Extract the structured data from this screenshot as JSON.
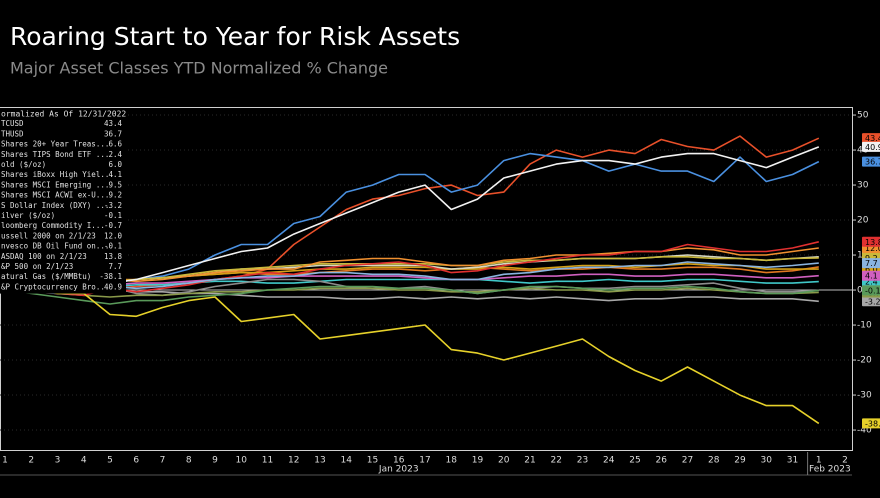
{
  "chart_data": {
    "type": "line",
    "title": "Roaring Start to Year for Risk Assets",
    "subtitle": "Major Asset Classes YTD Normalized % Change",
    "legend_title": "ormalized As Of 12/31/2022",
    "categories": [
      "1",
      "2",
      "3",
      "4",
      "5",
      "6",
      "7",
      "8",
      "9",
      "10",
      "11",
      "12",
      "13",
      "14",
      "15",
      "16",
      "17",
      "18",
      "19",
      "20",
      "21",
      "22",
      "23",
      "24",
      "25",
      "26",
      "27",
      "28",
      "29",
      "30",
      "31",
      "1",
      "2"
    ],
    "month_labels": [
      "Jan 2023",
      "Feb 2023"
    ],
    "ylim": [
      -45.7,
      52.3
    ],
    "yticks": [
      -40,
      -30,
      -20,
      -10,
      0,
      10,
      20,
      30,
      40,
      50
    ],
    "grid": true,
    "series": [
      {
        "name": "TCUSD",
        "value_label": "43.4",
        "color": "#e8502a",
        "values": [
          0,
          0.5,
          0.3,
          1,
          0.5,
          1,
          1.5,
          2,
          3,
          4,
          6,
          13,
          18,
          23,
          26,
          27,
          29,
          30,
          27,
          28,
          36,
          40,
          38,
          40,
          39,
          43,
          41,
          40,
          44,
          38,
          40,
          43.4,
          null
        ]
      },
      {
        "name": "THUSD",
        "value_label": "36.7",
        "color": "#4a90e0",
        "values": [
          0,
          0.5,
          1,
          1.5,
          2,
          3,
          4,
          6,
          10,
          13,
          13,
          19,
          21,
          28,
          30,
          33,
          33,
          28,
          30,
          37,
          39,
          38,
          37,
          34,
          36,
          34,
          34,
          31,
          38,
          31,
          33,
          36.7,
          null
        ]
      },
      {
        "name": "Shares 20+ Year Treas...",
        "value_label": "6.6",
        "color": "#e07820",
        "values": [
          0,
          0.5,
          1.5,
          2,
          3,
          3,
          3.5,
          4,
          4.5,
          5,
          4.5,
          4.5,
          5,
          5.5,
          6,
          6,
          5.5,
          6,
          6.5,
          6,
          5.5,
          6,
          6,
          6.5,
          6,
          6,
          6.5,
          6.5,
          6,
          5,
          5.5,
          6.6,
          null
        ]
      },
      {
        "name": "Shares TIPS Bond ETF ...",
        "value_label": "2.4",
        "color": "#40c8c8",
        "values": [
          0,
          0,
          0.5,
          0.5,
          1,
          1.5,
          1.5,
          2,
          2.5,
          2.5,
          2,
          2,
          2.5,
          3,
          3,
          3,
          3,
          3,
          3,
          2.5,
          2,
          2.5,
          2.5,
          3,
          2.5,
          2.5,
          3,
          3,
          2.5,
          2,
          2,
          2.4,
          null
        ]
      },
      {
        "name": "old ($/oz)",
        "value_label": "6.0",
        "color": "#d4a017",
        "values": [
          0,
          0.5,
          1,
          1.5,
          2.5,
          3,
          3.5,
          4,
          4.5,
          5,
          5,
          5.5,
          6,
          6,
          6.5,
          6.5,
          6.5,
          6,
          6,
          6.5,
          6,
          6.5,
          7,
          7,
          6.5,
          7,
          7.5,
          7,
          7,
          6,
          6,
          6,
          null
        ]
      },
      {
        "name": "Shares iBoxx High Yiel...",
        "value_label": "4.1",
        "color": "#d060c0",
        "values": [
          0,
          -0.5,
          0,
          0.5,
          1.5,
          2,
          2,
          2.5,
          3,
          3.5,
          3.5,
          4,
          4,
          4,
          4,
          4,
          3.5,
          3,
          3,
          3.5,
          4,
          4,
          4.5,
          4.5,
          4,
          4,
          4.5,
          4.5,
          4,
          3.5,
          3.5,
          4.1,
          null
        ]
      },
      {
        "name": "Shares MSCI Emerging ...",
        "value_label": "9.5",
        "color": "#d8d8c0",
        "values": [
          0,
          0.5,
          1,
          1,
          2,
          3,
          3.5,
          4,
          5,
          6,
          6,
          6.5,
          7,
          7,
          7,
          7,
          7,
          6,
          6.5,
          7.5,
          8,
          8.5,
          9,
          9,
          9,
          9.5,
          10,
          9.5,
          9,
          8.5,
          9,
          9.5,
          null
        ]
      },
      {
        "name": "Shares MSCI ACWI ex-U...",
        "value_label": "9.2",
        "color": "#c9b83a",
        "values": [
          0,
          0.5,
          1,
          1.5,
          2.5,
          3,
          3.5,
          4.5,
          5.5,
          6,
          6.5,
          7,
          7.5,
          7.5,
          7.5,
          7.5,
          7.5,
          7,
          7,
          8,
          8.5,
          8.5,
          9,
          9,
          9,
          9.5,
          9.5,
          9,
          9,
          8.5,
          9,
          9.2,
          null
        ]
      },
      {
        "name": "S Dollar Index (DXY) ...",
        "value_label": "-3.2",
        "color": "#a8a8a8",
        "values": [
          0,
          0.5,
          0.5,
          1,
          0,
          -0.5,
          -0.5,
          -1,
          -1,
          -1.5,
          -2,
          -2,
          -2,
          -2.5,
          -2.5,
          -2,
          -2.5,
          -2,
          -2.5,
          -2,
          -2.5,
          -2,
          -2.5,
          -3,
          -2.5,
          -2.5,
          -2,
          -2,
          -2.5,
          -2.5,
          -2.5,
          -3.2,
          null
        ]
      },
      {
        "name": "ilver ($/oz)",
        "value_label": "-0.1",
        "color": "#8c8c8c",
        "values": [
          0,
          0.5,
          0,
          0,
          1,
          -1,
          -1.5,
          -0.5,
          1,
          2,
          3,
          3,
          2.5,
          1,
          0.5,
          0.5,
          1,
          0,
          -1,
          0,
          0.5,
          1,
          0.5,
          0.5,
          1,
          1,
          1.5,
          2,
          0.5,
          -0.5,
          -0.5,
          -0.1,
          null
        ]
      },
      {
        "name": "loomberg Commodity I...",
        "value_label": "-0.7",
        "color": "#8a9a4a",
        "values": [
          0,
          -0.5,
          -1,
          -1.5,
          -2,
          -1.5,
          -1.5,
          -1,
          -0.5,
          -0.5,
          0,
          0,
          0.5,
          0.5,
          0.5,
          0,
          0,
          -0.5,
          -0.5,
          0,
          0.5,
          0,
          0,
          -0.5,
          0,
          0,
          0.5,
          0,
          -0.5,
          -1,
          -1,
          -0.7,
          null
        ]
      },
      {
        "name": "ussell 2000 on 2/1/23",
        "value_label": "12.0",
        "color": "#f09030",
        "values": [
          0,
          0,
          1,
          1.5,
          3,
          2.5,
          3,
          4,
          5,
          5.5,
          6,
          6,
          8,
          8.5,
          9,
          9,
          8,
          7,
          7,
          8.5,
          9,
          10,
          10,
          10.5,
          11,
          11,
          12,
          11.5,
          10,
          10,
          11,
          12,
          null
        ]
      },
      {
        "name": "nvesco DB Oil Fund on...",
        "value_label": "-0.1",
        "color": "#5a9a5a",
        "values": [
          0,
          -1,
          -2,
          -3,
          -4,
          -3,
          -3,
          -2,
          -1.5,
          -1,
          0,
          0.5,
          1,
          1,
          1,
          0.5,
          0.5,
          0,
          -1,
          0,
          1,
          1,
          0.5,
          0,
          0.5,
          0.5,
          1,
          0.5,
          -0.5,
          -1,
          -1,
          -0.1,
          null
        ]
      },
      {
        "name": "ASDAQ 100 on 2/1/23",
        "value_label": "13.8",
        "color": "#e03030",
        "values": [
          0,
          -0.5,
          -1,
          -1.5,
          0.5,
          -0.5,
          0.5,
          1.5,
          3,
          4,
          5,
          4.5,
          6,
          7,
          7.5,
          8,
          7,
          5,
          5.5,
          7,
          8,
          9,
          10,
          10,
          11,
          11,
          13,
          12,
          11,
          11,
          12,
          13.8,
          null
        ]
      },
      {
        "name": "&P 500 on 2/1/23",
        "value_label": "7.7",
        "color": "#8ab4e0",
        "values": [
          0,
          -0.5,
          -1,
          -1,
          1,
          0.5,
          1,
          2,
          3,
          3.5,
          4,
          4,
          5,
          5,
          4.5,
          4.5,
          4,
          3,
          3,
          4.5,
          5,
          6,
          6.5,
          6.5,
          7,
          7,
          8,
          7.5,
          7,
          6.5,
          7,
          7.7,
          null
        ]
      },
      {
        "name": "atural Gas ($/MMBtu)",
        "value_label": "-38.1",
        "color": "#e6d12a",
        "values": [
          0,
          0.5,
          -1,
          -1,
          -7,
          -7.5,
          -5,
          -3,
          -2,
          -9,
          -8,
          -7,
          -14,
          -13,
          -12,
          -11,
          -10,
          -17,
          -18,
          -20,
          -18,
          -16,
          -14,
          -19,
          -23,
          -26,
          -22,
          -26,
          -30,
          -33,
          -33,
          -38.1,
          null
        ]
      },
      {
        "name": "&P Cryptocurrency Bro...",
        "value_label": "40.9",
        "color": "#f2f2f2",
        "values": [
          0,
          0.3,
          1,
          1.5,
          2,
          3,
          5,
          7,
          9,
          11,
          12,
          16,
          19,
          22,
          25,
          28,
          30,
          23,
          26,
          32,
          34,
          36,
          37,
          37,
          36,
          38,
          39,
          39,
          37,
          35,
          38,
          40.9,
          null
        ]
      }
    ]
  }
}
